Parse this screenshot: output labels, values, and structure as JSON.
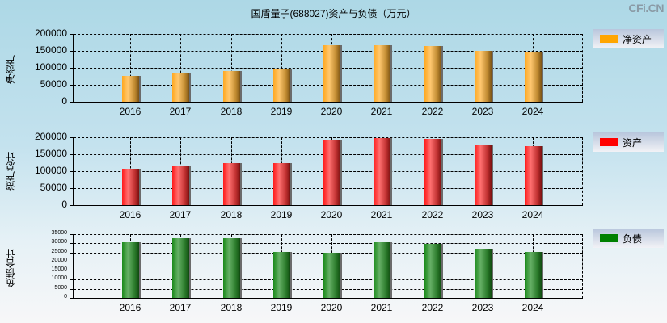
{
  "title": "国盾量子(688027)资产与负债（万元）",
  "watermark": "CFi.CN",
  "chart_data": [
    {
      "type": "bar",
      "title": "净资产",
      "ylabel": "净资产",
      "legend": "净资产",
      "color": "#ffa500",
      "categories": [
        "2016",
        "2017",
        "2018",
        "2019",
        "2020",
        "2021",
        "2022",
        "2023",
        "2024"
      ],
      "values": [
        76000,
        83000,
        90000,
        98000,
        167000,
        167000,
        164000,
        150000,
        148000
      ],
      "yticks": [
        "200000",
        "150000",
        "100000",
        "50000",
        "0"
      ],
      "ylim": [
        0,
        200000
      ],
      "grid": true,
      "legend_position": "right"
    },
    {
      "type": "bar",
      "title": "资产",
      "ylabel": "资产总计",
      "legend": "资产",
      "color": "#ff0000",
      "categories": [
        "2016",
        "2017",
        "2018",
        "2019",
        "2020",
        "2021",
        "2022",
        "2023",
        "2024"
      ],
      "values": [
        107000,
        117000,
        124000,
        124000,
        193000,
        198000,
        195000,
        179000,
        174000
      ],
      "yticks": [
        "200000",
        "150000",
        "100000",
        "50000",
        "0"
      ],
      "ylim": [
        0,
        200000
      ],
      "grid": true,
      "legend_position": "right"
    },
    {
      "type": "bar",
      "title": "负债",
      "ylabel": "负债合计",
      "legend": "负债",
      "color": "#008000",
      "categories": [
        "2016",
        "2017",
        "2018",
        "2019",
        "2020",
        "2021",
        "2022",
        "2023",
        "2024"
      ],
      "values": [
        30500,
        32700,
        32700,
        25300,
        24800,
        30500,
        29700,
        27000,
        25300
      ],
      "yticks": [
        "35000",
        "30000",
        "25000",
        "20000",
        "15000",
        "10000",
        "5000",
        "0"
      ],
      "ylim": [
        0,
        35000
      ],
      "grid": true,
      "legend_position": "right"
    }
  ]
}
